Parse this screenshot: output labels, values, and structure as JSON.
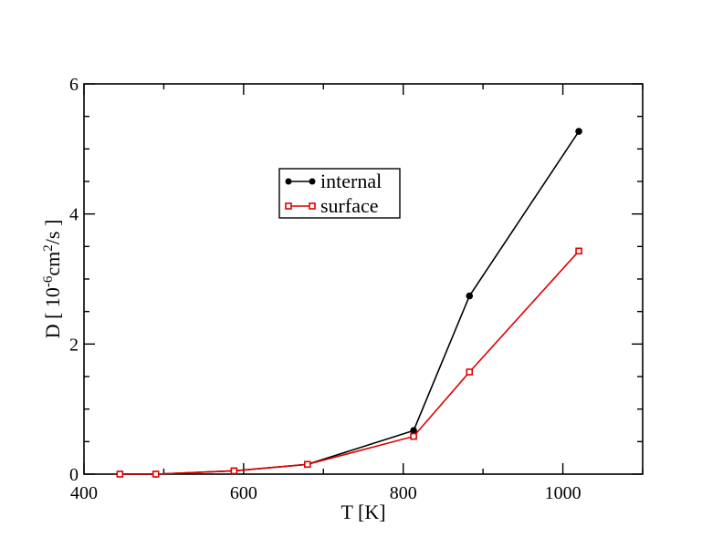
{
  "chart_data": {
    "type": "line",
    "xlabel": "T [K]",
    "ylabel": {
      "prefix": "D [ 10",
      "exp1": "-6",
      "mid": "cm",
      "exp2": "2",
      "suffix": "/s ]"
    },
    "xlim": [
      400,
      1100
    ],
    "ylim": [
      0,
      6
    ],
    "x_major_ticks": [
      400,
      600,
      800,
      1000
    ],
    "x_minor_ticks": [
      500,
      700,
      900,
      1100
    ],
    "y_major_ticks": [
      0,
      2,
      4,
      6
    ],
    "y_minor_ticks": [
      0.5,
      1,
      1.5,
      2.5,
      3,
      3.5,
      4.5,
      5,
      5.5
    ],
    "x_tick_labels": [
      "400",
      "600",
      "800",
      "1000"
    ],
    "y_tick_labels": [
      "0",
      "2",
      "4",
      "6"
    ],
    "grid": false,
    "legend_placement": "center",
    "series": [
      {
        "name": "internal",
        "color": "#000000",
        "marker": "circle",
        "x": [
          445,
          490,
          588,
          680,
          813,
          883,
          1020
        ],
        "y": [
          0.0,
          0.0,
          0.05,
          0.15,
          0.67,
          2.74,
          5.27
        ]
      },
      {
        "name": "surface",
        "color": "#dd0000",
        "marker": "square",
        "x": [
          445,
          490,
          588,
          680,
          813,
          883,
          1020
        ],
        "y": [
          0.0,
          0.0,
          0.05,
          0.15,
          0.58,
          1.57,
          3.43
        ]
      }
    ]
  }
}
